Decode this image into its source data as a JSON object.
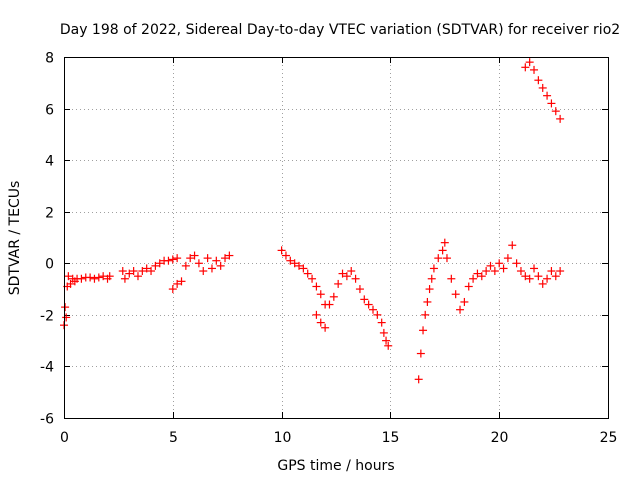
{
  "chart_data": {
    "type": "scatter",
    "title": "Day 198 of 2022, Sidereal Day-to-day VTEC variation (SDTVAR) for receiver rio2",
    "xlabel": "GPS time / hours",
    "ylabel": "SDTVAR / TECUs",
    "xlim": [
      0,
      25
    ],
    "ylim": [
      -6,
      8
    ],
    "xticks": [
      "0",
      "5",
      "10",
      "15",
      "20",
      "25"
    ],
    "yticks": [
      "-6",
      "-4",
      "-2",
      "0",
      "2",
      "4",
      "6",
      "8"
    ],
    "grid": true,
    "marker": "+",
    "series": [
      {
        "name": "SDTVAR",
        "color": "#ff0000",
        "points": [
          [
            0.0,
            -2.4
          ],
          [
            0.05,
            -1.7
          ],
          [
            0.1,
            -2.1
          ],
          [
            0.15,
            -0.9
          ],
          [
            0.2,
            -0.5
          ],
          [
            0.3,
            -0.8
          ],
          [
            0.4,
            -0.6
          ],
          [
            0.5,
            -0.7
          ],
          [
            0.6,
            -0.6
          ],
          [
            0.8,
            -0.6
          ],
          [
            1.0,
            -0.55
          ],
          [
            1.2,
            -0.55
          ],
          [
            1.4,
            -0.6
          ],
          [
            1.6,
            -0.55
          ],
          [
            1.8,
            -0.5
          ],
          [
            2.0,
            -0.6
          ],
          [
            2.1,
            -0.5
          ],
          [
            2.7,
            -0.3
          ],
          [
            2.8,
            -0.6
          ],
          [
            3.0,
            -0.4
          ],
          [
            3.2,
            -0.3
          ],
          [
            3.4,
            -0.5
          ],
          [
            3.6,
            -0.3
          ],
          [
            3.8,
            -0.2
          ],
          [
            4.0,
            -0.3
          ],
          [
            4.2,
            -0.1
          ],
          [
            4.4,
            0.0
          ],
          [
            4.6,
            0.1
          ],
          [
            4.8,
            0.1
          ],
          [
            5.0,
            0.15
          ],
          [
            5.2,
            0.2
          ],
          [
            5.0,
            -1.0
          ],
          [
            5.2,
            -0.8
          ],
          [
            5.4,
            -0.7
          ],
          [
            5.6,
            -0.1
          ],
          [
            5.8,
            0.2
          ],
          [
            6.0,
            0.3
          ],
          [
            6.2,
            0.0
          ],
          [
            6.4,
            -0.3
          ],
          [
            6.6,
            0.2
          ],
          [
            6.8,
            -0.2
          ],
          [
            7.0,
            0.1
          ],
          [
            7.2,
            -0.1
          ],
          [
            7.4,
            0.2
          ],
          [
            7.6,
            0.3
          ],
          [
            10.0,
            0.5
          ],
          [
            10.2,
            0.3
          ],
          [
            10.4,
            0.1
          ],
          [
            10.6,
            0.0
          ],
          [
            10.8,
            -0.1
          ],
          [
            11.0,
            -0.2
          ],
          [
            11.2,
            -0.4
          ],
          [
            11.4,
            -0.6
          ],
          [
            11.6,
            -0.9
          ],
          [
            11.8,
            -1.2
          ],
          [
            12.0,
            -1.6
          ],
          [
            11.6,
            -2.0
          ],
          [
            11.8,
            -2.3
          ],
          [
            12.0,
            -2.5
          ],
          [
            12.2,
            -1.6
          ],
          [
            12.4,
            -1.3
          ],
          [
            12.6,
            -0.8
          ],
          [
            12.8,
            -0.4
          ],
          [
            13.0,
            -0.5
          ],
          [
            13.2,
            -0.3
          ],
          [
            13.4,
            -0.6
          ],
          [
            13.6,
            -1.0
          ],
          [
            13.8,
            -1.4
          ],
          [
            14.0,
            -1.6
          ],
          [
            14.2,
            -1.8
          ],
          [
            14.4,
            -2.0
          ],
          [
            14.6,
            -2.3
          ],
          [
            14.7,
            -2.7
          ],
          [
            14.8,
            -3.0
          ],
          [
            14.9,
            -3.2
          ],
          [
            16.3,
            -4.5
          ],
          [
            16.4,
            -3.5
          ],
          [
            16.5,
            -2.6
          ],
          [
            16.6,
            -2.0
          ],
          [
            16.7,
            -1.5
          ],
          [
            16.8,
            -1.0
          ],
          [
            16.9,
            -0.6
          ],
          [
            17.0,
            -0.2
          ],
          [
            17.2,
            0.2
          ],
          [
            17.4,
            0.5
          ],
          [
            17.5,
            0.8
          ],
          [
            17.6,
            0.2
          ],
          [
            17.8,
            -0.6
          ],
          [
            18.0,
            -1.2
          ],
          [
            18.2,
            -1.8
          ],
          [
            18.4,
            -1.5
          ],
          [
            18.6,
            -0.9
          ],
          [
            18.8,
            -0.6
          ],
          [
            19.0,
            -0.4
          ],
          [
            19.2,
            -0.5
          ],
          [
            19.4,
            -0.3
          ],
          [
            19.6,
            -0.1
          ],
          [
            19.8,
            -0.3
          ],
          [
            20.0,
            0.0
          ],
          [
            20.2,
            -0.2
          ],
          [
            20.4,
            0.2
          ],
          [
            20.6,
            0.7
          ],
          [
            20.8,
            0.0
          ],
          [
            21.0,
            -0.3
          ],
          [
            21.2,
            -0.5
          ],
          [
            21.4,
            -0.6
          ],
          [
            21.6,
            -0.2
          ],
          [
            21.8,
            -0.5
          ],
          [
            22.0,
            -0.8
          ],
          [
            22.2,
            -0.6
          ],
          [
            22.4,
            -0.3
          ],
          [
            22.6,
            -0.5
          ],
          [
            22.8,
            -0.3
          ],
          [
            21.2,
            7.6
          ],
          [
            21.4,
            7.8
          ],
          [
            21.6,
            7.5
          ],
          [
            21.8,
            7.1
          ],
          [
            22.0,
            6.8
          ],
          [
            22.2,
            6.5
          ],
          [
            22.4,
            6.2
          ],
          [
            22.6,
            5.9
          ],
          [
            22.8,
            5.6
          ]
        ]
      }
    ]
  }
}
